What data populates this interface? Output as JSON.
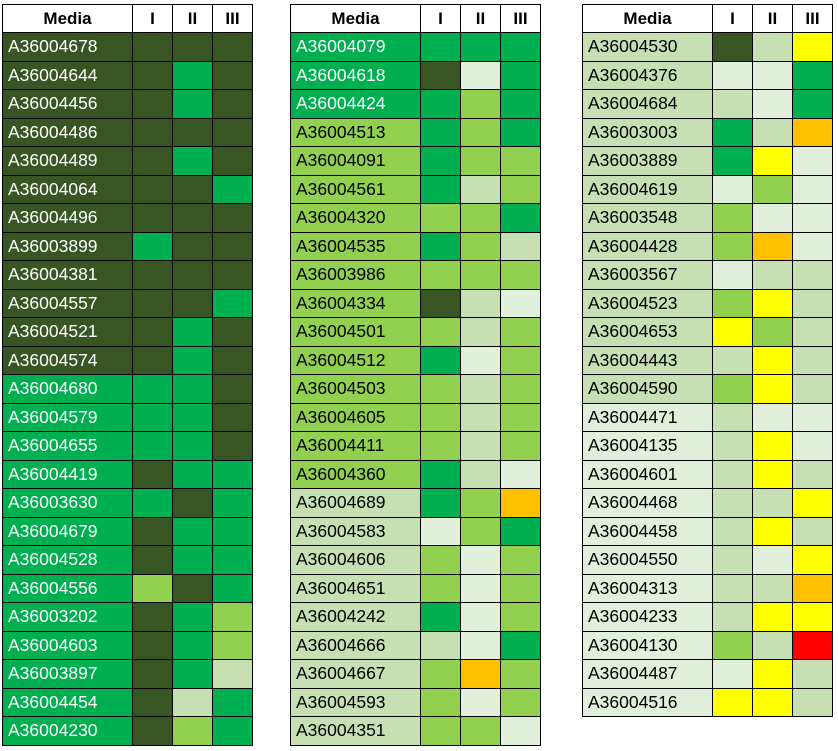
{
  "header": {
    "media": "Media",
    "c1": "I",
    "c2": "II",
    "c3": "III"
  },
  "colors": {
    "D": "#375623",
    "G": "#00b050",
    "L": "#92d050",
    "P": "#c6e0b4",
    "W": "#e2efda",
    "Y": "#ffff00",
    "O": "#ffc000",
    "R": "#ff0000"
  },
  "tables": [
    {
      "name_color": "D",
      "rows": [
        {
          "id": "A36004678",
          "m": "D",
          "v": [
            "D",
            "D",
            "D"
          ]
        },
        {
          "id": "A36004644",
          "m": "D",
          "v": [
            "D",
            "G",
            "D"
          ]
        },
        {
          "id": "A36004456",
          "m": "D",
          "v": [
            "D",
            "G",
            "D"
          ]
        },
        {
          "id": "A36004486",
          "m": "D",
          "v": [
            "D",
            "D",
            "D"
          ]
        },
        {
          "id": "A36004489",
          "m": "D",
          "v": [
            "D",
            "G",
            "D"
          ]
        },
        {
          "id": "A36004064",
          "m": "D",
          "v": [
            "D",
            "D",
            "G"
          ]
        },
        {
          "id": "A36004496",
          "m": "D",
          "v": [
            "D",
            "D",
            "D"
          ]
        },
        {
          "id": "A36003899",
          "m": "D",
          "v": [
            "G",
            "D",
            "D"
          ]
        },
        {
          "id": "A36004381",
          "m": "D",
          "v": [
            "D",
            "D",
            "D"
          ]
        },
        {
          "id": "A36004557",
          "m": "D",
          "v": [
            "D",
            "D",
            "G"
          ]
        },
        {
          "id": "A36004521",
          "m": "D",
          "v": [
            "D",
            "G",
            "D"
          ]
        },
        {
          "id": "A36004574",
          "m": "D",
          "v": [
            "D",
            "G",
            "D"
          ]
        },
        {
          "id": "A36004680",
          "m": "G",
          "v": [
            "G",
            "G",
            "D"
          ]
        },
        {
          "id": "A36004579",
          "m": "G",
          "v": [
            "G",
            "G",
            "D"
          ]
        },
        {
          "id": "A36004655",
          "m": "G",
          "v": [
            "G",
            "G",
            "D"
          ]
        },
        {
          "id": "A36004419",
          "m": "G",
          "v": [
            "D",
            "G",
            "G"
          ]
        },
        {
          "id": "A36003630",
          "m": "G",
          "v": [
            "G",
            "D",
            "G"
          ]
        },
        {
          "id": "A36004679",
          "m": "G",
          "v": [
            "D",
            "G",
            "G"
          ]
        },
        {
          "id": "A36004528",
          "m": "G",
          "v": [
            "D",
            "G",
            "G"
          ]
        },
        {
          "id": "A36004556",
          "m": "G",
          "v": [
            "L",
            "D",
            "G"
          ]
        },
        {
          "id": "A36003202",
          "m": "G",
          "v": [
            "D",
            "G",
            "L"
          ]
        },
        {
          "id": "A36004603",
          "m": "G",
          "v": [
            "D",
            "G",
            "L"
          ]
        },
        {
          "id": "A36003897",
          "m": "G",
          "v": [
            "D",
            "G",
            "P"
          ]
        },
        {
          "id": "A36004454",
          "m": "G",
          "v": [
            "D",
            "P",
            "G"
          ]
        },
        {
          "id": "A36004230",
          "m": "G",
          "v": [
            "D",
            "L",
            "G"
          ]
        }
      ]
    },
    {
      "rows": [
        {
          "id": "A36004079",
          "m": "G",
          "v": [
            "G",
            "G",
            "G"
          ]
        },
        {
          "id": "A36004618",
          "m": "G",
          "v": [
            "D",
            "W",
            "G"
          ]
        },
        {
          "id": "A36004424",
          "m": "G",
          "v": [
            "G",
            "L",
            "G"
          ]
        },
        {
          "id": "A36004513",
          "m": "L",
          "v": [
            "G",
            "L",
            "G"
          ]
        },
        {
          "id": "A36004091",
          "m": "L",
          "v": [
            "G",
            "L",
            "L"
          ]
        },
        {
          "id": "A36004561",
          "m": "L",
          "v": [
            "G",
            "P",
            "L"
          ]
        },
        {
          "id": "A36004320",
          "m": "L",
          "v": [
            "L",
            "L",
            "G"
          ]
        },
        {
          "id": "A36004535",
          "m": "L",
          "v": [
            "G",
            "L",
            "P"
          ]
        },
        {
          "id": "A36003986",
          "m": "L",
          "v": [
            "L",
            "L",
            "L"
          ]
        },
        {
          "id": "A36004334",
          "m": "L",
          "v": [
            "D",
            "P",
            "W"
          ]
        },
        {
          "id": "A36004501",
          "m": "L",
          "v": [
            "L",
            "P",
            "L"
          ]
        },
        {
          "id": "A36004512",
          "m": "L",
          "v": [
            "G",
            "W",
            "L"
          ]
        },
        {
          "id": "A36004503",
          "m": "L",
          "v": [
            "L",
            "P",
            "L"
          ]
        },
        {
          "id": "A36004605",
          "m": "L",
          "v": [
            "L",
            "P",
            "L"
          ]
        },
        {
          "id": "A36004411",
          "m": "L",
          "v": [
            "L",
            "P",
            "L"
          ]
        },
        {
          "id": "A36004360",
          "m": "L",
          "v": [
            "G",
            "P",
            "W"
          ]
        },
        {
          "id": "A36004689",
          "m": "P",
          "v": [
            "G",
            "L",
            "O"
          ]
        },
        {
          "id": "A36004583",
          "m": "P",
          "v": [
            "W",
            "L",
            "G"
          ]
        },
        {
          "id": "A36004606",
          "m": "P",
          "v": [
            "L",
            "W",
            "L"
          ]
        },
        {
          "id": "A36004651",
          "m": "P",
          "v": [
            "L",
            "W",
            "L"
          ]
        },
        {
          "id": "A36004242",
          "m": "P",
          "v": [
            "G",
            "W",
            "L"
          ]
        },
        {
          "id": "A36004666",
          "m": "P",
          "v": [
            "P",
            "W",
            "G"
          ]
        },
        {
          "id": "A36004667",
          "m": "P",
          "v": [
            "L",
            "O",
            "L"
          ]
        },
        {
          "id": "A36004593",
          "m": "P",
          "v": [
            "L",
            "W",
            "L"
          ]
        },
        {
          "id": "A36004351",
          "m": "P",
          "v": [
            "L",
            "L",
            "W"
          ]
        }
      ]
    },
    {
      "rows": [
        {
          "id": "A36004530",
          "m": "P",
          "v": [
            "D",
            "P",
            "Y"
          ]
        },
        {
          "id": "A36004376",
          "m": "P",
          "v": [
            "W",
            "W",
            "G"
          ]
        },
        {
          "id": "A36004684",
          "m": "P",
          "v": [
            "P",
            "W",
            "G"
          ]
        },
        {
          "id": "A36003003",
          "m": "P",
          "v": [
            "G",
            "P",
            "O"
          ]
        },
        {
          "id": "A36003889",
          "m": "P",
          "v": [
            "G",
            "Y",
            "W"
          ]
        },
        {
          "id": "A36004619",
          "m": "P",
          "v": [
            "W",
            "L",
            "W"
          ]
        },
        {
          "id": "A36003548",
          "m": "P",
          "v": [
            "L",
            "W",
            "W"
          ]
        },
        {
          "id": "A36004428",
          "m": "P",
          "v": [
            "L",
            "O",
            "W"
          ]
        },
        {
          "id": "A36003567",
          "m": "P",
          "v": [
            "W",
            "P",
            "P"
          ]
        },
        {
          "id": "A36004523",
          "m": "P",
          "v": [
            "L",
            "Y",
            "P"
          ]
        },
        {
          "id": "A36004653",
          "m": "P",
          "v": [
            "Y",
            "L",
            "P"
          ]
        },
        {
          "id": "A36004443",
          "m": "P",
          "v": [
            "P",
            "Y",
            "P"
          ]
        },
        {
          "id": "A36004590",
          "m": "P",
          "v": [
            "L",
            "Y",
            "P"
          ]
        },
        {
          "id": "A36004471",
          "m": "W",
          "v": [
            "P",
            "W",
            "W"
          ]
        },
        {
          "id": "A36004135",
          "m": "W",
          "v": [
            "P",
            "Y",
            "W"
          ]
        },
        {
          "id": "A36004601",
          "m": "W",
          "v": [
            "P",
            "Y",
            "P"
          ]
        },
        {
          "id": "A36004468",
          "m": "W",
          "v": [
            "P",
            "P",
            "Y"
          ]
        },
        {
          "id": "A36004458",
          "m": "W",
          "v": [
            "P",
            "Y",
            "P"
          ]
        },
        {
          "id": "A36004550",
          "m": "W",
          "v": [
            "P",
            "W",
            "Y"
          ]
        },
        {
          "id": "A36004313",
          "m": "W",
          "v": [
            "P",
            "P",
            "O"
          ]
        },
        {
          "id": "A36004233",
          "m": "W",
          "v": [
            "P",
            "Y",
            "Y"
          ]
        },
        {
          "id": "A36004130",
          "m": "W",
          "v": [
            "L",
            "P",
            "R"
          ]
        },
        {
          "id": "A36004487",
          "m": "W",
          "v": [
            "W",
            "Y",
            "P"
          ]
        },
        {
          "id": "A36004516",
          "m": "W",
          "v": [
            "Y",
            "Y",
            "P"
          ]
        }
      ]
    }
  ]
}
